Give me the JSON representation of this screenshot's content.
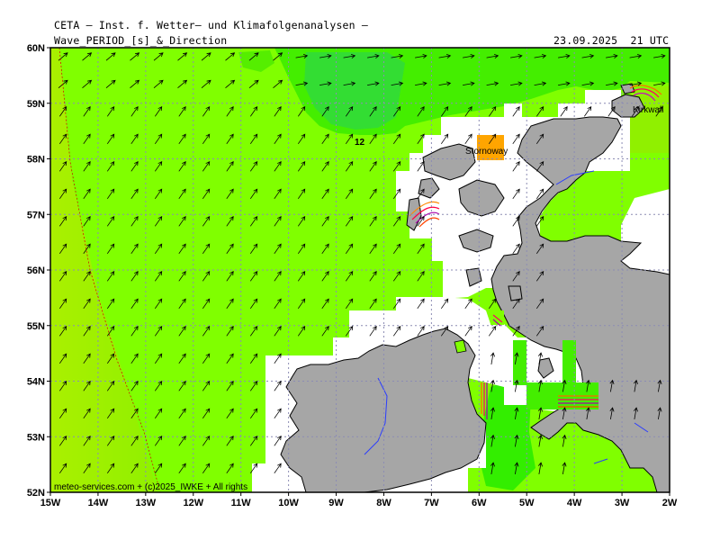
{
  "header": {
    "line1": "CETA – Inst. f. Wetter– und Klimafolgenanalysen –",
    "line2": "Wave_PERIOD_[s]_&_Direction",
    "datetime": "23.09.2025  21 UTC"
  },
  "axes": {
    "lon_labels": [
      "15W",
      "14W",
      "13W",
      "12W",
      "11W",
      "10W",
      "9W",
      "8W",
      "7W",
      "6W",
      "5W",
      "4W",
      "3W",
      "2W"
    ],
    "lat_labels": [
      "60N",
      "59N",
      "58N",
      "57N",
      "56N",
      "55N",
      "54N",
      "53N",
      "52N"
    ]
  },
  "annotations": {
    "contour_label": "12",
    "cities": [
      "Stornoway",
      "Kirkwall"
    ]
  },
  "footer": {
    "credit": "meteo-services.com + (c)2025_IWKE + All rights"
  },
  "colors": {
    "sea_light": "#80ff00",
    "sea_mid": "#44ee00",
    "sea_dark": "#33dd33",
    "sea_yellow": "#aaf000",
    "land": "#a6a6a6",
    "grid": "#8c8cb4",
    "contour": "#d00000"
  }
}
